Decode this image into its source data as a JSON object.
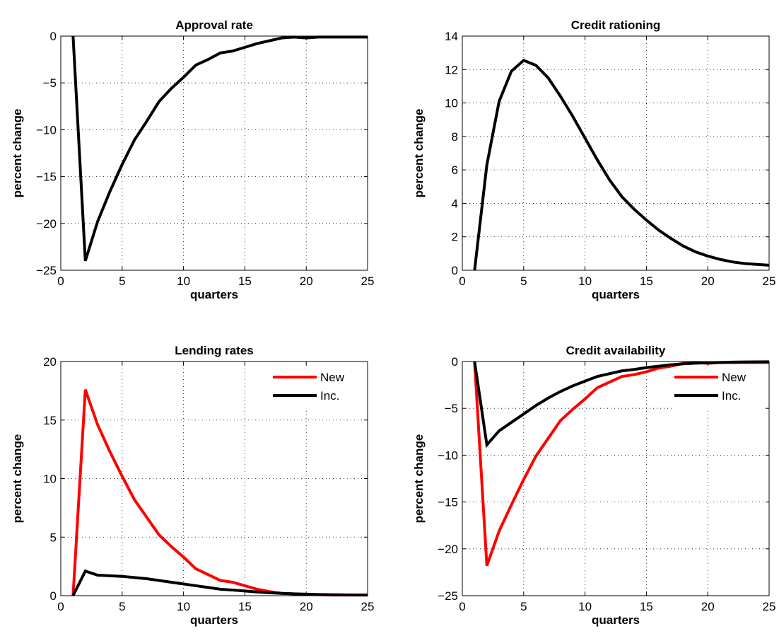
{
  "chart_data": [
    {
      "type": "line",
      "title": "Approval rate",
      "xlabel": "quarters",
      "ylabel": "percent change",
      "xlim": [
        0,
        25
      ],
      "ylim": [
        -25,
        0
      ],
      "xticks": [
        0,
        5,
        10,
        15,
        20,
        25
      ],
      "yticks": [
        -25,
        -20,
        -15,
        -10,
        -5,
        0
      ],
      "grid": true,
      "legend": null,
      "series": [
        {
          "color": "#000000",
          "x": [
            1,
            2,
            3,
            4,
            5,
            6,
            7,
            8,
            9,
            10,
            11,
            12,
            13,
            14,
            15,
            16,
            17,
            18,
            19,
            20,
            21,
            22,
            23,
            24,
            25
          ],
          "y": [
            0,
            -24,
            -19.8,
            -16.6,
            -13.7,
            -11.1,
            -9.1,
            -7.0,
            -5.6,
            -4.4,
            -3.1,
            -2.5,
            -1.8,
            -1.6,
            -1.2,
            -0.8,
            -0.5,
            -0.2,
            -0.1,
            -0.2,
            -0.1,
            -0.1,
            -0.1,
            -0.1,
            -0.1
          ]
        }
      ]
    },
    {
      "type": "line",
      "title": "Credit rationing",
      "xlabel": "quarters",
      "ylabel": "percent change",
      "xlim": [
        0,
        25
      ],
      "ylim": [
        0,
        14
      ],
      "xticks": [
        0,
        5,
        10,
        15,
        20,
        25
      ],
      "yticks": [
        0,
        2,
        4,
        6,
        8,
        10,
        12,
        14
      ],
      "grid": true,
      "legend": null,
      "series": [
        {
          "color": "#000000",
          "x": [
            1,
            2,
            3,
            4,
            5,
            6,
            7,
            8,
            9,
            10,
            11,
            12,
            13,
            14,
            15,
            16,
            17,
            18,
            19,
            20,
            21,
            22,
            23,
            24,
            25
          ],
          "y": [
            0,
            6.3,
            10.1,
            11.9,
            12.55,
            12.25,
            11.5,
            10.4,
            9.2,
            7.9,
            6.6,
            5.4,
            4.4,
            3.65,
            3.0,
            2.4,
            1.9,
            1.45,
            1.1,
            0.85,
            0.65,
            0.5,
            0.4,
            0.35,
            0.3
          ]
        }
      ]
    },
    {
      "type": "line",
      "title": "Lending rates",
      "xlabel": "quarters",
      "ylabel": "percent change",
      "xlim": [
        0,
        25
      ],
      "ylim": [
        0,
        20
      ],
      "xticks": [
        0,
        5,
        10,
        15,
        20,
        25
      ],
      "yticks": [
        0,
        5,
        10,
        15,
        20
      ],
      "grid": true,
      "legend": "top-right",
      "series": [
        {
          "name": "New",
          "color": "#ff0000",
          "x": [
            1,
            2,
            3,
            4,
            5,
            6,
            7,
            8,
            9,
            10,
            11,
            12,
            13,
            14,
            15,
            16,
            17,
            18,
            19,
            20,
            21,
            22,
            23,
            24,
            25
          ],
          "y": [
            0,
            17.6,
            14.6,
            12.3,
            10.2,
            8.2,
            6.7,
            5.2,
            4.2,
            3.3,
            2.3,
            1.8,
            1.3,
            1.15,
            0.85,
            0.55,
            0.35,
            0.2,
            0.15,
            0.1,
            0.08,
            0.05,
            0.05,
            0.05,
            0.05
          ]
        },
        {
          "name": "Inc.",
          "color": "#000000",
          "x": [
            1,
            2,
            3,
            4,
            5,
            6,
            7,
            8,
            9,
            10,
            11,
            12,
            13,
            14,
            15,
            16,
            17,
            18,
            19,
            20,
            21,
            22,
            23,
            24,
            25
          ],
          "y": [
            0,
            2.1,
            1.75,
            1.7,
            1.65,
            1.55,
            1.45,
            1.3,
            1.15,
            1.0,
            0.85,
            0.7,
            0.55,
            0.48,
            0.4,
            0.32,
            0.25,
            0.2,
            0.16,
            0.13,
            0.1,
            0.08,
            0.07,
            0.06,
            0.05
          ]
        }
      ]
    },
    {
      "type": "line",
      "title": "Credit availability",
      "xlabel": "quarters",
      "ylabel": "percent change",
      "xlim": [
        0,
        25
      ],
      "ylim": [
        -25,
        0
      ],
      "xticks": [
        0,
        5,
        10,
        15,
        20,
        25
      ],
      "yticks": [
        -25,
        -20,
        -15,
        -10,
        -5,
        0
      ],
      "grid": true,
      "legend": "top-right",
      "series": [
        {
          "name": "New",
          "color": "#ff0000",
          "x": [
            1,
            2,
            3,
            4,
            5,
            6,
            7,
            8,
            9,
            10,
            11,
            12,
            13,
            14,
            15,
            16,
            17,
            18,
            19,
            20,
            21,
            22,
            23,
            24,
            25
          ],
          "y": [
            0,
            -21.8,
            -18.1,
            -15.3,
            -12.6,
            -10.1,
            -8.2,
            -6.3,
            -5.1,
            -4.0,
            -2.8,
            -2.2,
            -1.6,
            -1.4,
            -1.1,
            -0.7,
            -0.5,
            -0.2,
            -0.1,
            -0.2,
            -0.1,
            -0.1,
            -0.1,
            -0.1,
            -0.1
          ]
        },
        {
          "name": "Inc.",
          "color": "#000000",
          "x": [
            1,
            2,
            3,
            4,
            5,
            6,
            7,
            8,
            9,
            10,
            11,
            12,
            13,
            14,
            15,
            16,
            17,
            18,
            19,
            20,
            21,
            22,
            23,
            24,
            25
          ],
          "y": [
            0,
            -8.9,
            -7.4,
            -6.5,
            -5.6,
            -4.7,
            -3.9,
            -3.2,
            -2.6,
            -2.1,
            -1.6,
            -1.3,
            -1.0,
            -0.85,
            -0.65,
            -0.5,
            -0.35,
            -0.25,
            -0.18,
            -0.13,
            -0.1,
            -0.07,
            -0.05,
            -0.04,
            -0.03
          ]
        }
      ]
    }
  ]
}
